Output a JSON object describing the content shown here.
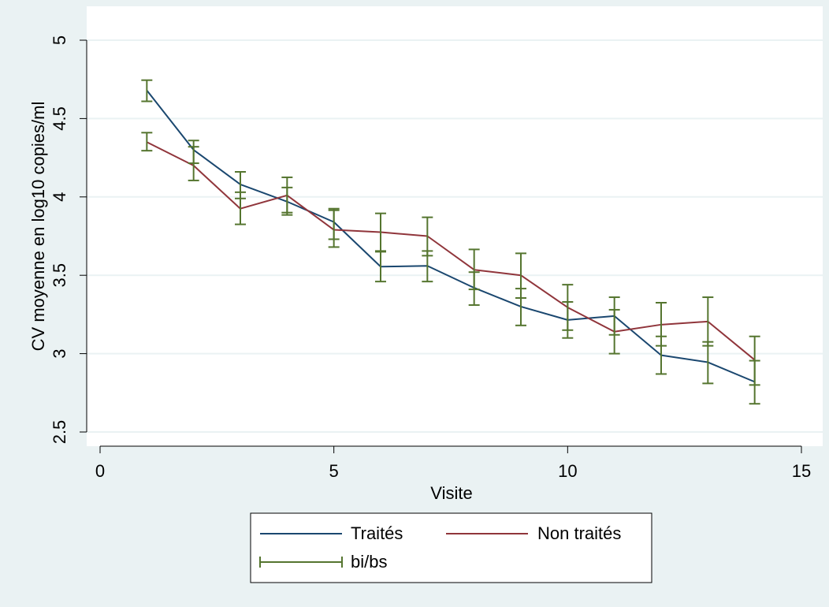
{
  "chart_data": {
    "type": "line",
    "title": "",
    "xlabel": "Visite",
    "ylabel": "CV moyenne en log10 copies/ml",
    "xlim": [
      0,
      15
    ],
    "ylim": [
      2.5,
      5
    ],
    "xticks": [
      0,
      5,
      10,
      15
    ],
    "yticks": [
      "2.5",
      "3",
      "3.5",
      "4",
      "4.5",
      "5"
    ],
    "grid": true,
    "legend_position": "bottom",
    "x": [
      1,
      2,
      3,
      4,
      5,
      6,
      7,
      8,
      9,
      10,
      11,
      12,
      13,
      14
    ],
    "series": [
      {
        "name": "Traités",
        "color": "#1a476f",
        "values": [
          4.68,
          4.3,
          4.08,
          3.97,
          3.84,
          3.555,
          3.56,
          3.42,
          3.3,
          3.215,
          3.24,
          2.99,
          2.945,
          2.82
        ]
      },
      {
        "name": "Non traités",
        "color": "#90353b",
        "values": [
          4.35,
          4.2,
          3.925,
          4.01,
          3.79,
          3.775,
          3.75,
          3.535,
          3.5,
          3.295,
          3.14,
          3.185,
          3.205,
          2.96
        ]
      }
    ],
    "errorbars": {
      "name": "bi/bs",
      "color": "#55752f",
      "traites": {
        "low": [
          4.61,
          4.215,
          3.99,
          3.885,
          3.73,
          3.46,
          3.46,
          3.31,
          3.18,
          3.1,
          3.12,
          2.87,
          2.81,
          2.68
        ],
        "high": [
          4.745,
          4.36,
          4.16,
          4.06,
          3.925,
          3.655,
          3.655,
          3.52,
          3.415,
          3.33,
          3.36,
          3.11,
          3.075,
          2.955
        ]
      },
      "non_traites": {
        "low": [
          4.295,
          4.105,
          3.825,
          3.9,
          3.68,
          3.65,
          3.625,
          3.41,
          3.355,
          3.15,
          3.0,
          3.05,
          3.05,
          2.8
        ],
        "high": [
          4.41,
          4.32,
          4.03,
          4.125,
          3.915,
          3.895,
          3.87,
          3.665,
          3.64,
          3.44,
          3.28,
          3.325,
          3.36,
          3.11
        ]
      }
    }
  },
  "legend": {
    "items": [
      {
        "label": "Traités",
        "color": "#1a476f",
        "kind": "line"
      },
      {
        "label": "Non traités",
        "color": "#90353b",
        "kind": "line"
      },
      {
        "label": "bi/bs",
        "color": "#55752f",
        "kind": "errorbar"
      }
    ]
  }
}
